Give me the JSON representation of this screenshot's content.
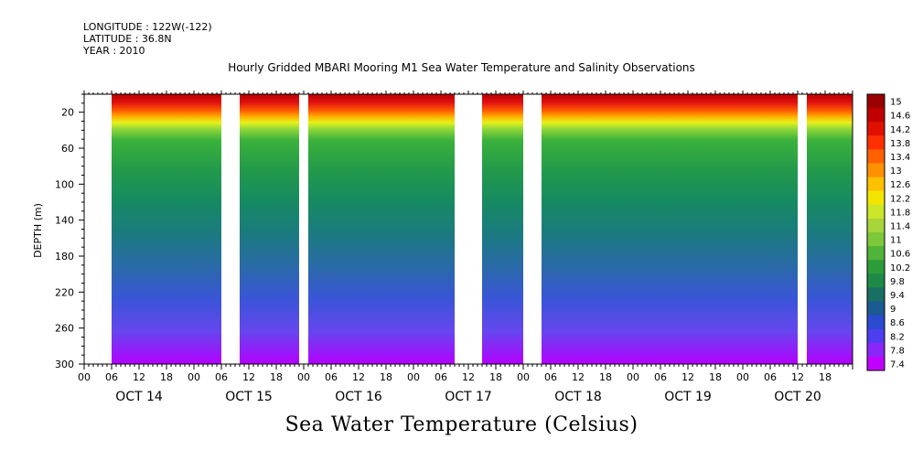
{
  "header": {
    "longitude": "LONGITUDE : 122W(-122)",
    "latitude": "LATITUDE : 36.8N",
    "year": "YEAR : 2010",
    "title": "Hourly Gridded MBARI Mooring M1 Sea Water Temperature and Salinity Observations"
  },
  "chart_data": {
    "type": "heatmap",
    "title": "Hourly Gridded MBARI Mooring M1 Sea Water Temperature and Salinity Observations",
    "subtitle": "Sea Water Temperature (Celsius)",
    "ylabel": "DEPTH (m)",
    "xlabel": "",
    "ylim": [
      300,
      0
    ],
    "xlim_hours": [
      0,
      168
    ],
    "y_ticks": [
      20,
      60,
      100,
      140,
      180,
      220,
      260,
      300
    ],
    "x_hour_ticks": [
      "00",
      "06",
      "12",
      "18",
      "00",
      "06",
      "12",
      "18",
      "00",
      "06",
      "12",
      "18",
      "00",
      "06",
      "12",
      "18",
      "00",
      "06",
      "12",
      "18",
      "00",
      "06",
      "12",
      "18",
      "00",
      "06",
      "12",
      "18"
    ],
    "day_labels": [
      "OCT 14",
      "OCT 15",
      "OCT 16",
      "OCT 17",
      "OCT 18",
      "OCT 19",
      "OCT 20"
    ],
    "colorbar": {
      "labels": [
        "15",
        "14.6",
        "14.2",
        "13.8",
        "13.4",
        "13",
        "12.6",
        "12.2",
        "11.8",
        "11.4",
        "11",
        "10.6",
        "10.2",
        "9.8",
        "9.4",
        "9",
        "8.6",
        "8.2",
        "7.8",
        "7.4"
      ],
      "min": 7.4,
      "max": 15
    },
    "data_gaps_hours": [
      {
        "from": 0,
        "to": 6
      },
      {
        "from": 30,
        "to": 34
      },
      {
        "from": 47,
        "to": 49
      },
      {
        "from": 81,
        "to": 87
      },
      {
        "from": 96,
        "to": 100
      },
      {
        "from": 156,
        "to": 158
      }
    ]
  },
  "colors": {
    "warm": "#cc0000",
    "mid": "#2a9a2a",
    "cold": "#b400ff"
  }
}
